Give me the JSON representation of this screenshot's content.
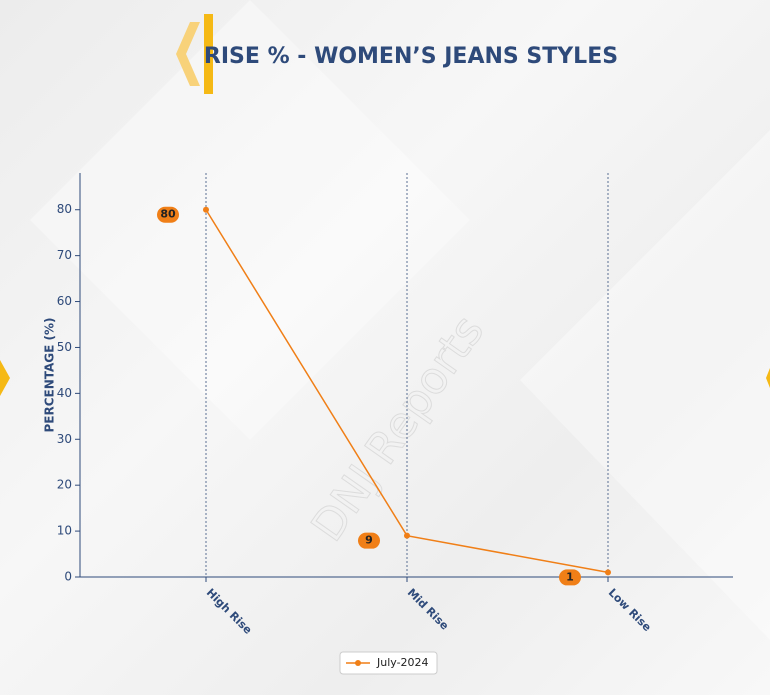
{
  "chart_data": {
    "type": "line",
    "title": "RISE % - WOMEN’S JEANS STYLES",
    "watermark": "DNJ Reports",
    "y_label": "PERCENTAGE (%)",
    "categories": [
      "High Rise",
      "Mid Rise",
      "Low Rise"
    ],
    "series": [
      {
        "name": "July-2024",
        "color": "#f07f17",
        "values": [
          80,
          9,
          1
        ]
      }
    ],
    "ylim": [
      0,
      88
    ],
    "yticks": [
      0,
      10,
      20,
      30,
      40,
      50,
      60,
      70,
      80
    ],
    "x_grid": true
  }
}
